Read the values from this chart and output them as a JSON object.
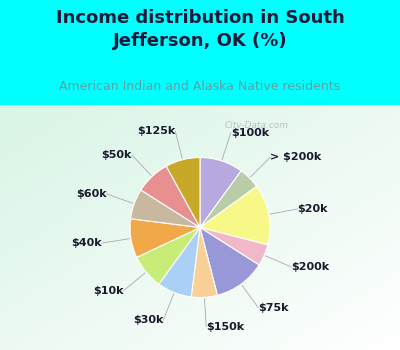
{
  "title": "Income distribution in South\nJefferson, OK (%)",
  "subtitle": "American Indian and Alaska Native residents",
  "bg_cyan": "#00ffff",
  "bg_chart_tl": "#d8f0e8",
  "bg_chart_br": "#ffffff",
  "title_color": "#1a1a3a",
  "subtitle_color": "#60a0a0",
  "watermark": "City-Data.com",
  "labels": [
    "$100k",
    "> $200k",
    "$20k",
    "$200k",
    "$75k",
    "$150k",
    "$30k",
    "$10k",
    "$40k",
    "$60k",
    "$50k",
    "$125k"
  ],
  "sizes": [
    10,
    5,
    14,
    5,
    12,
    6,
    8,
    8,
    9,
    7,
    8,
    8
  ],
  "colors": [
    "#b8a8e0",
    "#b8cca8",
    "#f8f888",
    "#f0b8c8",
    "#9898d8",
    "#f8d098",
    "#aad0f8",
    "#c8ec78",
    "#f0a848",
    "#c8b8a0",
    "#e89090",
    "#c8a828"
  ],
  "title_fontsize": 13,
  "subtitle_fontsize": 9,
  "label_fontsize": 8
}
